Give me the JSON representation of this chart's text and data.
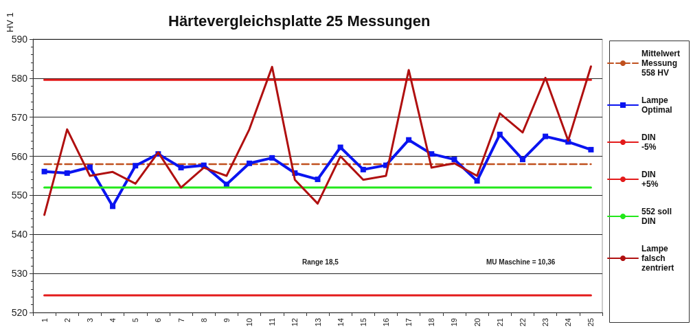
{
  "chart_data": {
    "type": "line",
    "title": "Härtevergleichsplatte 25 Messungen",
    "ylabel": "HV 1",
    "categories": [
      "1",
      "2",
      "3",
      "4",
      "5",
      "6",
      "7",
      "8",
      "9",
      "10",
      "11",
      "12",
      "13",
      "14",
      "15",
      "16",
      "17",
      "18",
      "19",
      "20",
      "21",
      "22",
      "23",
      "24",
      "25"
    ],
    "series": [
      {
        "name": "Mittelwert\nMessung\n558 HV",
        "color": "#c0501e",
        "line_style": "dashed",
        "marker": "none",
        "values": [
          558,
          558,
          558,
          558,
          558,
          558,
          558,
          558,
          558,
          558,
          558,
          558,
          558,
          558,
          558,
          558,
          558,
          558,
          558,
          558,
          558,
          558,
          558,
          558,
          558
        ]
      },
      {
        "name": "Lampe\nOptimal",
        "color": "#0a14f0",
        "marker": "square",
        "values": [
          556.1,
          555.7,
          557.2,
          547.2,
          557.6,
          560.6,
          557.1,
          557.7,
          552.8,
          558.2,
          559.6,
          555.7,
          554.1,
          562.3,
          556.6,
          557.7,
          564.2,
          560.6,
          559.2,
          553.7,
          565.6,
          559.2,
          565.1,
          563.7,
          561.7
        ]
      },
      {
        "name": "DIN\n-5%",
        "color": "#e31a1a",
        "marker": "none",
        "values": [
          524.4,
          524.4,
          524.4,
          524.4,
          524.4,
          524.4,
          524.4,
          524.4,
          524.4,
          524.4,
          524.4,
          524.4,
          524.4,
          524.4,
          524.4,
          524.4,
          524.4,
          524.4,
          524.4,
          524.4,
          524.4,
          524.4,
          524.4,
          524.4,
          524.4
        ]
      },
      {
        "name": "DIN\n+5%",
        "color": "#e31a1a",
        "marker": "none",
        "values": [
          579.6,
          579.6,
          579.6,
          579.6,
          579.6,
          579.6,
          579.6,
          579.6,
          579.6,
          579.6,
          579.6,
          579.6,
          579.6,
          579.6,
          579.6,
          579.6,
          579.6,
          579.6,
          579.6,
          579.6,
          579.6,
          579.6,
          579.6,
          579.6,
          579.6
        ]
      },
      {
        "name": "552 soll\nDIN",
        "color": "#22e81a",
        "marker": "none",
        "values": [
          552,
          552,
          552,
          552,
          552,
          552,
          552,
          552,
          552,
          552,
          552,
          552,
          552,
          552,
          552,
          552,
          552,
          552,
          552,
          552,
          552,
          552,
          552,
          552,
          552
        ]
      },
      {
        "name": "Lampe\nfalsch\nzentriert",
        "color": "#b01010",
        "marker": "none",
        "values": [
          545,
          566.9,
          555,
          556,
          553,
          561,
          552,
          557.1,
          555,
          566.9,
          582.9,
          554,
          547.9,
          560,
          554,
          555,
          582.1,
          557.1,
          558.2,
          555,
          571,
          566.1,
          580.1,
          564,
          583
        ]
      }
    ],
    "ylim": [
      520,
      590
    ],
    "yticks": [
      520,
      530,
      540,
      550,
      560,
      570,
      580,
      590
    ],
    "grid": "y",
    "legend": "right",
    "annotations": [
      "Range 18,5",
      "MU Maschine = 10,36"
    ]
  }
}
